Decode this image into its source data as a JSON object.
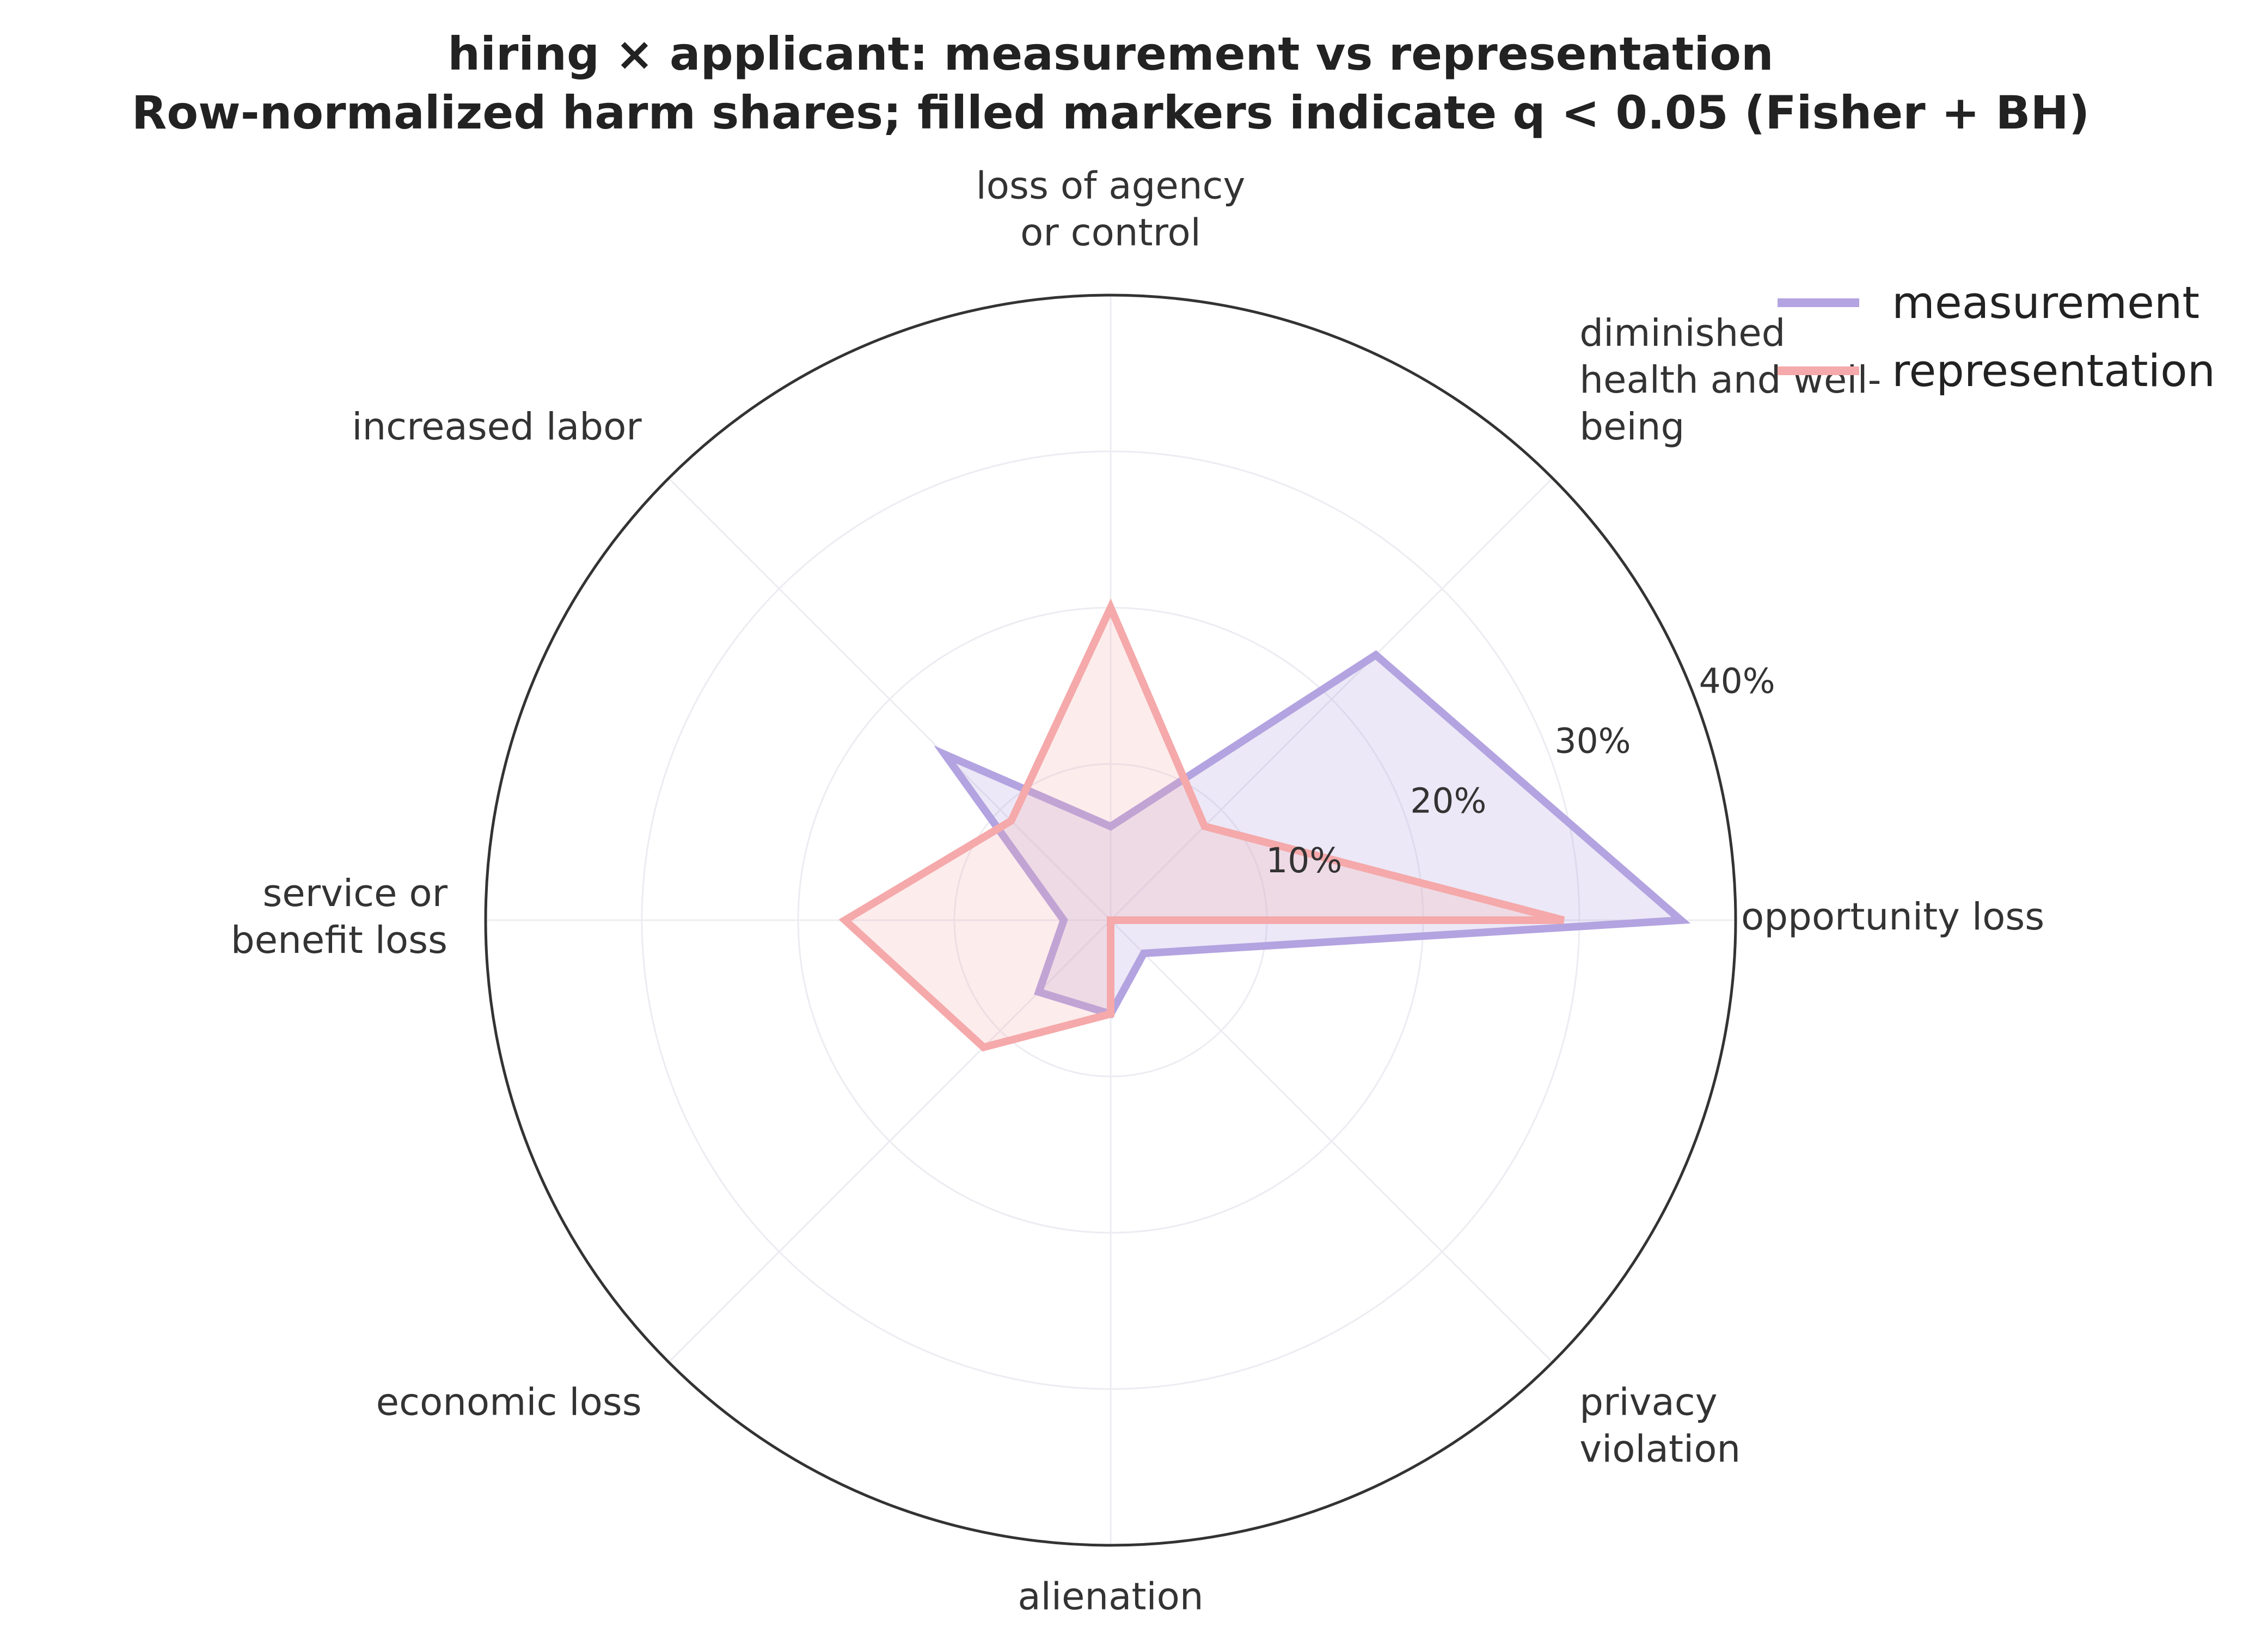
{
  "chart_data": {
    "type": "radar",
    "title": "hiring × applicant: measurement vs representation",
    "subtitle": "Row-normalized harm shares; filled markers indicate q < 0.05 (Fisher + BH)",
    "categories": [
      "opportunity loss",
      "diminished health and well-being",
      "loss of agency or control",
      "increased labor",
      "service or benefit loss",
      "economic loss",
      "alienation",
      "privacy violation"
    ],
    "category_labels": [
      [
        "opportunity loss"
      ],
      [
        "diminished",
        "health and well-",
        "being"
      ],
      [
        "loss of agency",
        "or control"
      ],
      [
        "increased labor"
      ],
      [
        "service or",
        "benefit loss"
      ],
      [
        "economic loss"
      ],
      [
        "alienation"
      ],
      [
        "privacy",
        "violation"
      ]
    ],
    "rlim": [
      0,
      40
    ],
    "r_ticks": [
      10,
      20,
      30,
      40
    ],
    "r_tick_labels": [
      "10%",
      "20%",
      "30%",
      "40%"
    ],
    "grid": true,
    "legend_position": "top-right",
    "series": [
      {
        "name": "measurement",
        "color": "#b3a3e0",
        "values": [
          36.5,
          24.0,
          6.0,
          15.0,
          3.0,
          6.5,
          6.0,
          3.0
        ]
      },
      {
        "name": "representation",
        "color": "#f5a9aa",
        "values": [
          29.0,
          8.5,
          20.0,
          9.0,
          17.0,
          11.5,
          6.0,
          0.0
        ]
      }
    ]
  }
}
